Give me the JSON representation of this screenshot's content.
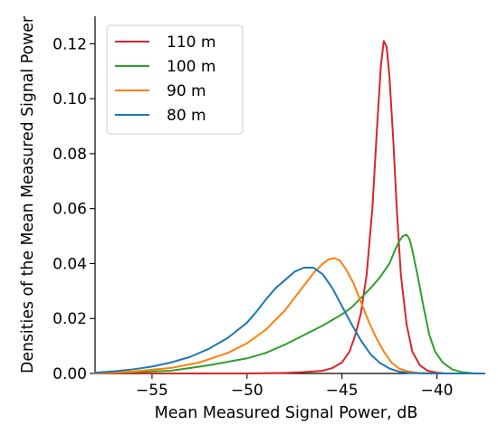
{
  "chart_data": {
    "type": "line",
    "title": "",
    "xlabel": "Mean Measured Signal Power, dB",
    "ylabel": "Densities of the Mean Measured Signal Power",
    "xlim": [
      -58,
      -37.5
    ],
    "ylim": [
      0,
      0.13
    ],
    "x_ticks": [
      -55,
      -50,
      -45,
      -40
    ],
    "x_tick_labels": [
      "−55",
      "−50",
      "−45",
      "−40"
    ],
    "y_ticks": [
      0.0,
      0.02,
      0.04,
      0.06,
      0.08,
      0.1,
      0.12
    ],
    "y_tick_labels": [
      "0.00",
      "0.02",
      "0.04",
      "0.06",
      "0.08",
      "0.10",
      "0.12"
    ],
    "grid": false,
    "legend_position": "top-left",
    "series": [
      {
        "name": "110 m",
        "color": "#d62728",
        "points": [
          [
            -58,
            0.0
          ],
          [
            -50,
            0.0
          ],
          [
            -48,
            0.0002
          ],
          [
            -47,
            0.0005
          ],
          [
            -46,
            0.001
          ],
          [
            -45.5,
            0.002
          ],
          [
            -45,
            0.004
          ],
          [
            -44.6,
            0.008
          ],
          [
            -44.3,
            0.014
          ],
          [
            -44.0,
            0.022
          ],
          [
            -43.7,
            0.036
          ],
          [
            -43.4,
            0.06
          ],
          [
            -43.15,
            0.09
          ],
          [
            -42.95,
            0.112
          ],
          [
            -42.8,
            0.121
          ],
          [
            -42.65,
            0.119
          ],
          [
            -42.5,
            0.108
          ],
          [
            -42.3,
            0.085
          ],
          [
            -42.1,
            0.058
          ],
          [
            -41.9,
            0.036
          ],
          [
            -41.6,
            0.018
          ],
          [
            -41.3,
            0.008
          ],
          [
            -40.9,
            0.003
          ],
          [
            -40.5,
            0.001
          ],
          [
            -40.0,
            0.0003
          ],
          [
            -39.5,
            0.0
          ],
          [
            -37.5,
            0.0
          ]
        ]
      },
      {
        "name": "100 m",
        "color": "#2ca02c",
        "points": [
          [
            -58,
            0.0
          ],
          [
            -56,
            0.0005
          ],
          [
            -54,
            0.001
          ],
          [
            -52,
            0.003
          ],
          [
            -50,
            0.0055
          ],
          [
            -49,
            0.0075
          ],
          [
            -48,
            0.0105
          ],
          [
            -47,
            0.014
          ],
          [
            -46,
            0.0175
          ],
          [
            -45,
            0.0215
          ],
          [
            -44.5,
            0.024
          ],
          [
            -44,
            0.0275
          ],
          [
            -43.5,
            0.031
          ],
          [
            -43,
            0.035
          ],
          [
            -42.5,
            0.04
          ],
          [
            -42.2,
            0.045
          ],
          [
            -42.0,
            0.048
          ],
          [
            -41.8,
            0.05
          ],
          [
            -41.6,
            0.0505
          ],
          [
            -41.45,
            0.049
          ],
          [
            -41.3,
            0.045
          ],
          [
            -41.0,
            0.035
          ],
          [
            -40.7,
            0.024
          ],
          [
            -40.4,
            0.014
          ],
          [
            -40.1,
            0.008
          ],
          [
            -39.7,
            0.004
          ],
          [
            -39.2,
            0.0015
          ],
          [
            -38.7,
            0.0005
          ],
          [
            -38.0,
            0.0
          ],
          [
            -37.5,
            0.0
          ]
        ]
      },
      {
        "name": "90 m",
        "color": "#ff7f0e",
        "points": [
          [
            -58,
            0.0
          ],
          [
            -56,
            0.0007
          ],
          [
            -54,
            0.002
          ],
          [
            -52.5,
            0.004
          ],
          [
            -51,
            0.0075
          ],
          [
            -50,
            0.011
          ],
          [
            -49,
            0.016
          ],
          [
            -48,
            0.023
          ],
          [
            -47.5,
            0.0275
          ],
          [
            -47,
            0.032
          ],
          [
            -46.5,
            0.0365
          ],
          [
            -46,
            0.04
          ],
          [
            -45.7,
            0.0415
          ],
          [
            -45.4,
            0.042
          ],
          [
            -45.1,
            0.041
          ],
          [
            -44.8,
            0.038
          ],
          [
            -44.4,
            0.033
          ],
          [
            -44.0,
            0.026
          ],
          [
            -43.6,
            0.019
          ],
          [
            -43.2,
            0.013
          ],
          [
            -42.8,
            0.008
          ],
          [
            -42.4,
            0.004
          ],
          [
            -42.0,
            0.0018
          ],
          [
            -41.5,
            0.0007
          ],
          [
            -41.0,
            0.0002
          ],
          [
            -40.0,
            0.0
          ],
          [
            -37.5,
            0.0
          ]
        ]
      },
      {
        "name": "80 m",
        "color": "#1f77b4",
        "points": [
          [
            -58,
            0.0003
          ],
          [
            -57,
            0.0008
          ],
          [
            -56,
            0.0015
          ],
          [
            -55,
            0.0025
          ],
          [
            -54,
            0.004
          ],
          [
            -53,
            0.006
          ],
          [
            -52,
            0.009
          ],
          [
            -51,
            0.013
          ],
          [
            -50,
            0.0185
          ],
          [
            -49.5,
            0.0225
          ],
          [
            -49,
            0.027
          ],
          [
            -48.5,
            0.031
          ],
          [
            -48,
            0.034
          ],
          [
            -47.5,
            0.037
          ],
          [
            -47.0,
            0.0385
          ],
          [
            -46.5,
            0.0385
          ],
          [
            -46.0,
            0.036
          ],
          [
            -45.5,
            0.031
          ],
          [
            -45.0,
            0.0245
          ],
          [
            -44.5,
            0.018
          ],
          [
            -44.0,
            0.012
          ],
          [
            -43.5,
            0.007
          ],
          [
            -43.0,
            0.0038
          ],
          [
            -42.5,
            0.0018
          ],
          [
            -42.0,
            0.0007
          ],
          [
            -41.5,
            0.0002
          ],
          [
            -40.5,
            0.0
          ],
          [
            -37.5,
            0.0
          ]
        ]
      }
    ]
  }
}
